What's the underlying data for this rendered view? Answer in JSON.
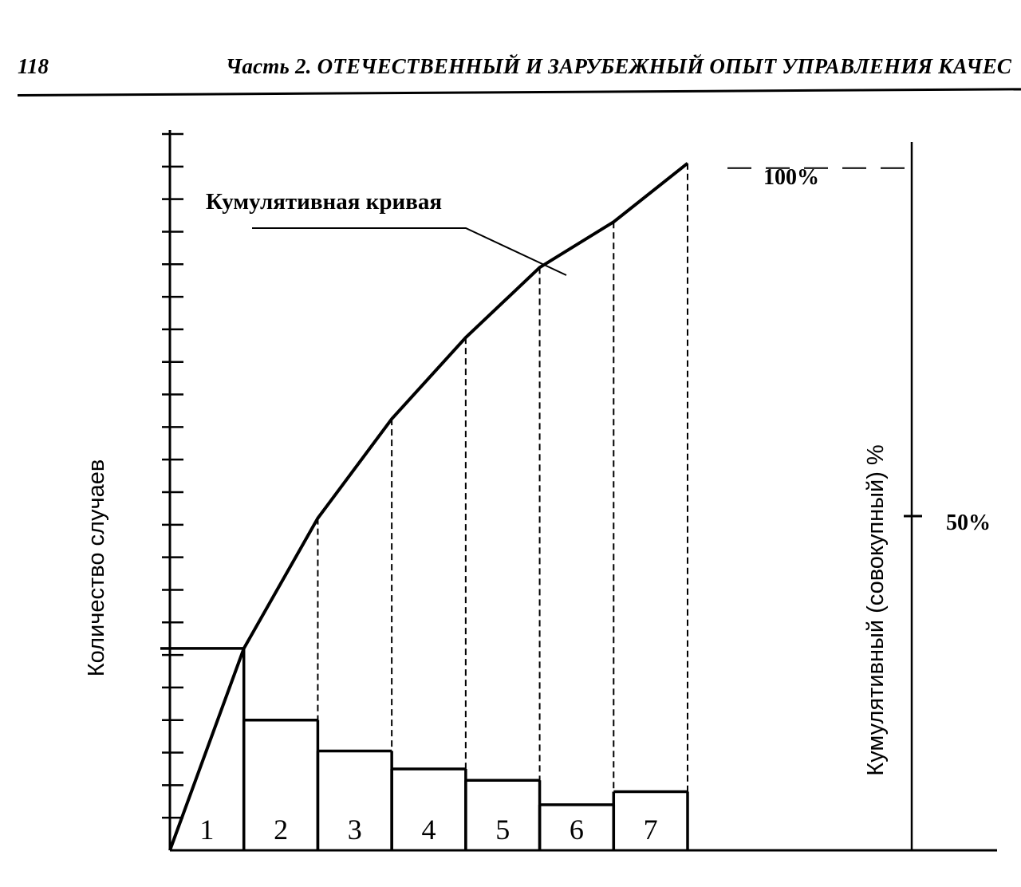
{
  "header": {
    "page_number": "118",
    "title": "Часть 2. ОТЕЧЕСТВЕННЫЙ И ЗАРУБЕЖНЫЙ ОПЫТ УПРАВЛЕНИЯ КАЧЕС"
  },
  "chart_data": {
    "type": "bar",
    "categories": [
      "1",
      "2",
      "3",
      "4",
      "5",
      "6",
      "7"
    ],
    "values": [
      6.2,
      4.0,
      3.05,
      2.5,
      2.15,
      1.4,
      1.8
    ],
    "cumulative": [
      6.2,
      10.2,
      13.25,
      15.75,
      17.9,
      19.3,
      21.1
    ],
    "ylabel_left": "Количество случаев",
    "ylabel_right": "Кумулятивный (совокупный) %",
    "ylim_left": [
      0,
      22
    ],
    "y_tick_count_left": 22,
    "right_axis_labels": [
      "100%",
      "50%"
    ],
    "curve_label": "Кумулятивная кривая",
    "grid": false
  }
}
